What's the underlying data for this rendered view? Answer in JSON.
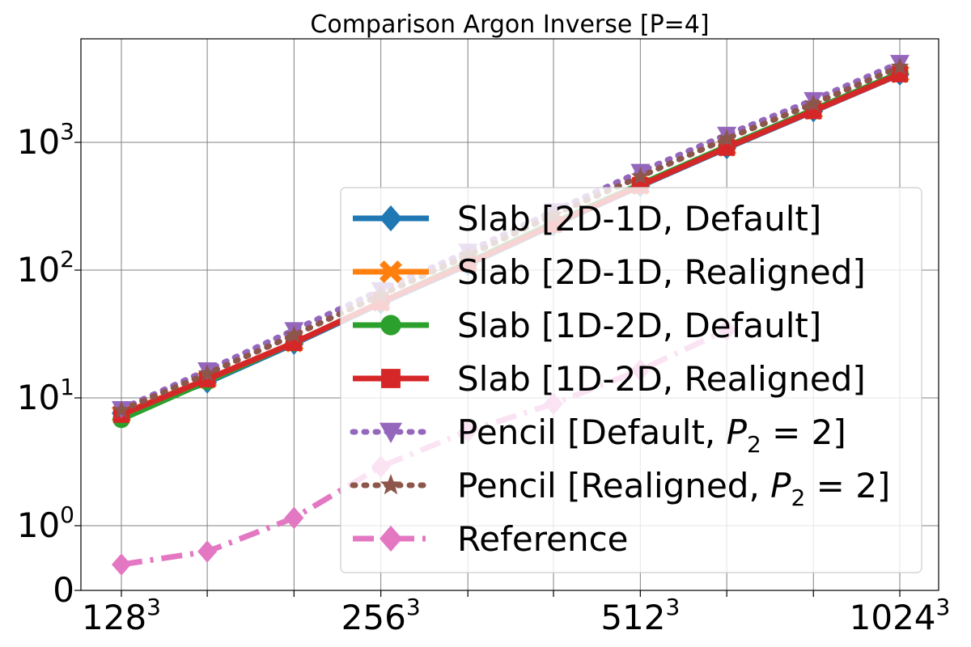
{
  "chart_data": {
    "type": "line",
    "title": "Comparison Argon Inverse [P=4]",
    "xlabel": "",
    "ylabel": "",
    "x": [
      128,
      161,
      203,
      256,
      323,
      406,
      512,
      645,
      813,
      1024
    ],
    "xticks_major": [
      {
        "value": 128,
        "base": "128",
        "exp": "3"
      },
      {
        "value": 256,
        "base": "256",
        "exp": "3"
      },
      {
        "value": 512,
        "base": "512",
        "exp": "3"
      },
      {
        "value": 1024,
        "base": "1024",
        "exp": "3"
      }
    ],
    "xscale": "log",
    "yscale": "symlog",
    "yticks": [
      {
        "value": 0,
        "base": "0",
        "exp": ""
      },
      {
        "value": 1,
        "base": "10",
        "exp": "0"
      },
      {
        "value": 10,
        "base": "10",
        "exp": "1"
      },
      {
        "value": 100,
        "base": "10",
        "exp": "2"
      },
      {
        "value": 1000,
        "base": "10",
        "exp": "3"
      }
    ],
    "ylim": [
      0,
      5000
    ],
    "grid": true,
    "legend_position": "lower-right",
    "series": [
      {
        "name": "Slab [2D-1D, Default]",
        "color": "#1f77b4",
        "marker": "diamond",
        "linestyle": "solid",
        "values": [
          7.6,
          13.2,
          26.5,
          55,
          110,
          225,
          455,
          900,
          1750,
          3400
        ]
      },
      {
        "name": "Slab [2D-1D, Realigned]",
        "color": "#ff7f0e",
        "marker": "x-filled",
        "linestyle": "solid",
        "values": [
          7.5,
          14,
          27,
          56,
          115,
          230,
          460,
          920,
          1780,
          3450
        ]
      },
      {
        "name": "Slab [1D-2D, Default]",
        "color": "#2ca02c",
        "marker": "circle",
        "linestyle": "solid",
        "values": [
          6.8,
          13.5,
          27,
          56,
          115,
          235,
          470,
          930,
          1800,
          3500
        ]
      },
      {
        "name": "Slab [1D-2D, Realigned]",
        "color": "#d62728",
        "marker": "square",
        "linestyle": "solid",
        "values": [
          7.4,
          14,
          27,
          56,
          112,
          228,
          460,
          910,
          1760,
          3420
        ]
      },
      {
        "name": "Pencil [Default, P_2 = 2]",
        "label_main": "Pencil [Default, ",
        "label_math": "P",
        "label_sub": "2",
        "label_tail": " = 2]",
        "color": "#9467bd",
        "marker": "triangle-down",
        "linestyle": "dotted",
        "values": [
          8.2,
          16.5,
          34,
          70,
          140,
          290,
          590,
          1150,
          2150,
          4200
        ]
      },
      {
        "name": "Pencil [Realigned, P_2 = 2]",
        "label_main": "Pencil [Realigned, ",
        "label_math": "P",
        "label_sub": "2",
        "label_tail": " = 2]",
        "color": "#8c564b",
        "marker": "star",
        "linestyle": "dotted",
        "values": [
          8,
          15.5,
          31,
          64,
          130,
          270,
          540,
          1070,
          2000,
          3900
        ]
      },
      {
        "name": "Reference",
        "color": "#e377c2",
        "marker": "diamond",
        "linestyle": "dashdot",
        "values": [
          0.4,
          0.6,
          1.15,
          2.9,
          5.5,
          9,
          16.5,
          34,
          null,
          null
        ]
      }
    ]
  }
}
